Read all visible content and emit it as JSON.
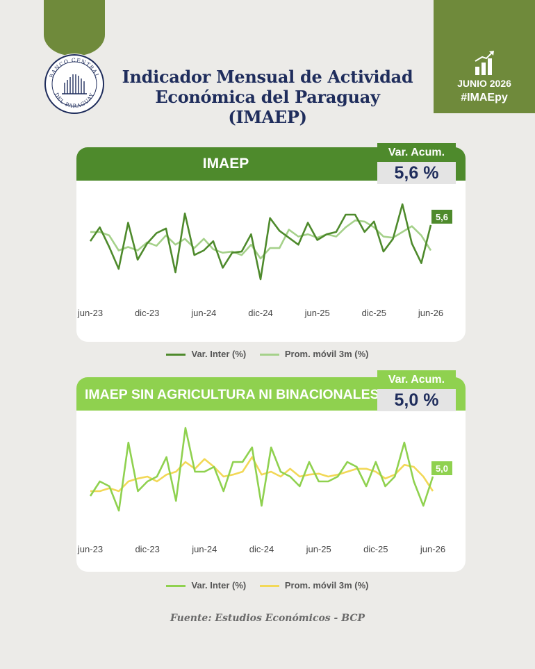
{
  "header": {
    "title_line1": "Indicador Mensual de Actividad",
    "title_line2": "Económica del Paraguay (IMAEP)",
    "badge_date": "JUNIO 2026",
    "badge_tag": "#IMAEpy",
    "logo_text": "BANCO CENTRAL DEL PARAGUAY"
  },
  "colors": {
    "brand_green": "#6f8a3b",
    "imaep_dark": "#4e8a2c",
    "imaep_light": "#a5d18a",
    "sin_agri_green": "#8fd14f",
    "sin_agri_yellow": "#f2d857",
    "navy": "#1f2d5c"
  },
  "source": "Fuente: Estudios Económicos - BCP",
  "chart_data": [
    {
      "type": "line",
      "title": "IMAEP",
      "acum_label": "Var. Acum.",
      "acum_value": "5,6 %",
      "end_label": "5,6",
      "x_ticks": [
        "jun-23",
        "dic-23",
        "jun-24",
        "dic-24",
        "jun-25",
        "dic-25",
        "jun-26"
      ],
      "series": [
        {
          "name": "Var. Inter (%)",
          "color": "#4e8a2c",
          "values": [
            4.2,
            5.4,
            3.7,
            1.8,
            5.8,
            2.6,
            4.0,
            4.9,
            5.3,
            1.5,
            6.6,
            3.0,
            3.4,
            4.2,
            1.9,
            3.2,
            3.3,
            4.8,
            0.9,
            6.2,
            5.1,
            4.5,
            3.9,
            5.8,
            4.3,
            4.8,
            5.0,
            6.5,
            6.5,
            5.0,
            5.9,
            3.3,
            4.4,
            7.4,
            4.0,
            2.3,
            5.6
          ]
        },
        {
          "name": "Prom. móvil 3m (%)",
          "color": "#a5d18a",
          "values": [
            5.0,
            5.0,
            4.7,
            3.4,
            3.7,
            3.4,
            4.1,
            3.8,
            4.7,
            3.9,
            4.4,
            3.6,
            4.4,
            3.5,
            3.2,
            3.3,
            3.0,
            3.9,
            2.7,
            3.6,
            3.6,
            5.2,
            4.6,
            4.8,
            4.5,
            4.8,
            4.6,
            5.4,
            6.0,
            5.9,
            5.4,
            4.6,
            4.5,
            5.0,
            5.5,
            4.7,
            3.4
          ]
        }
      ]
    },
    {
      "type": "line",
      "title": "IMAEP SIN AGRICULTURA NI BINACIONALES",
      "acum_label": "Var. Acum.",
      "acum_value": "5,0 %",
      "end_label": "5,0",
      "x_ticks": [
        "jun-23",
        "dic-23",
        "jun-24",
        "dic-24",
        "jun-25",
        "dic-25",
        "jun-26"
      ],
      "series": [
        {
          "name": "Var. Inter (%)",
          "color": "#8fd14f",
          "values": [
            3.0,
            4.5,
            4.0,
            1.5,
            8.5,
            3.5,
            4.5,
            5.0,
            7.0,
            2.5,
            10.0,
            5.5,
            5.5,
            6.0,
            3.5,
            6.5,
            6.5,
            8.0,
            2.0,
            8.0,
            5.5,
            5.0,
            4.0,
            6.5,
            4.5,
            4.5,
            5.0,
            6.5,
            6.0,
            4.0,
            6.5,
            4.0,
            5.0,
            8.5,
            4.5,
            2.0,
            5.0
          ]
        },
        {
          "name": "Prom. móvil 3m (%)",
          "color": "#f2d857",
          "values": [
            3.5,
            3.5,
            3.8,
            3.5,
            4.5,
            4.8,
            5.0,
            4.5,
            5.2,
            5.5,
            6.5,
            5.8,
            6.8,
            6.0,
            5.0,
            5.2,
            5.5,
            7.0,
            5.2,
            5.5,
            5.0,
            5.8,
            5.0,
            5.2,
            5.3,
            5.0,
            5.2,
            5.5,
            5.8,
            5.8,
            5.5,
            4.8,
            5.2,
            6.2,
            6.0,
            5.0,
            3.5
          ]
        }
      ]
    }
  ]
}
